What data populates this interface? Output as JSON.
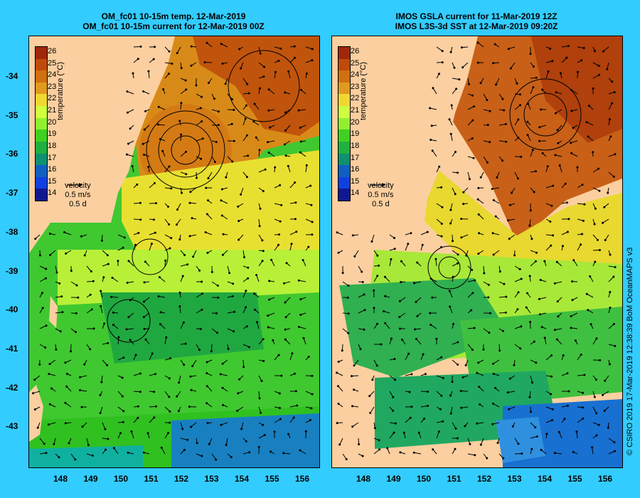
{
  "left_map": {
    "title_line1": "OM_fc01 10-15m temp. 12-Mar-2019",
    "title_line2": "OM_fc01 10-15m current for 12-Mar-2019 00Z"
  },
  "right_map": {
    "title_line1": "IMOS GSLA current for 11-Mar-2019 12Z",
    "title_line2": "IMOS L3S-3d SST at 12-Mar-2019 09:20Z"
  },
  "colorbar": {
    "label": "temperature (°C)",
    "ticks": [
      "26",
      "25",
      "24",
      "23",
      "22",
      "21",
      "20",
      "19",
      "18",
      "17",
      "16",
      "15",
      "14"
    ],
    "colors": [
      "#a0280a",
      "#c04a0a",
      "#d07010",
      "#e09a20",
      "#f0d830",
      "#d0ff40",
      "#90f030",
      "#40d020",
      "#20b040",
      "#109070",
      "#1060c0",
      "#1040e0",
      "#101890"
    ]
  },
  "velocity_legend": {
    "label": "velocity",
    "speed": "0.5 m/s",
    "time": "0.5 d"
  },
  "axes": {
    "lat_ticks": [
      "-34",
      "-35",
      "-36",
      "-37",
      "-38",
      "-39",
      "-40",
      "-41",
      "-42",
      "-43"
    ],
    "lon_ticks": [
      "148",
      "149",
      "150",
      "151",
      "152",
      "153",
      "154",
      "155",
      "156"
    ]
  },
  "credit": "© CSIRO 2019   17-Mar-2019 12:38:39 BoM OceanMAPS v3",
  "colors": {
    "background": "#33ccff",
    "land": "#fccfa0"
  }
}
